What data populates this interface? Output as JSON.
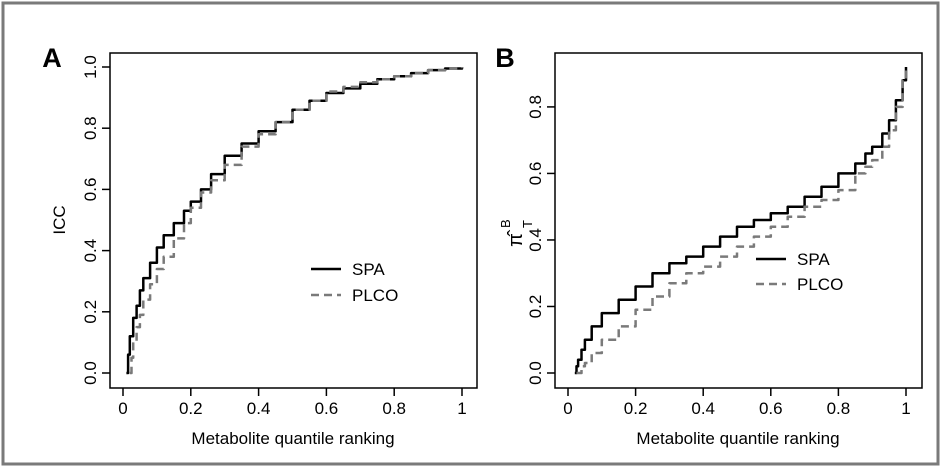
{
  "figure": {
    "frame_color": "#7a7a7a"
  },
  "chart_data": [
    {
      "type": "line",
      "panel_label": "A",
      "xlabel": "Metabolite quantile ranking",
      "ylabel": "ICC",
      "xlim": [
        0,
        1
      ],
      "ylim": [
        0,
        1
      ],
      "xticks": [
        0,
        0.2,
        0.4,
        0.6,
        0.8,
        1
      ],
      "xtick_labels": [
        "0",
        "0.2",
        "0.4",
        "0.6",
        "0.8",
        "1"
      ],
      "yticks": [
        0,
        0.2,
        0.4,
        0.6,
        0.8,
        1.0
      ],
      "ytick_labels": [
        "0.0",
        "0.2",
        "0.4",
        "0.6",
        "0.8",
        "1.0"
      ],
      "grid": false,
      "legend_position": "bottom-right",
      "series": [
        {
          "name": "SPA",
          "color": "#000000",
          "style": "solid",
          "x": [
            0.01,
            0.015,
            0.02,
            0.03,
            0.04,
            0.05,
            0.06,
            0.08,
            0.1,
            0.12,
            0.15,
            0.18,
            0.2,
            0.23,
            0.26,
            0.3,
            0.35,
            0.4,
            0.45,
            0.5,
            0.55,
            0.6,
            0.65,
            0.7,
            0.75,
            0.8,
            0.85,
            0.9,
            0.95,
            1.0
          ],
          "y": [
            0.0,
            0.06,
            0.12,
            0.18,
            0.22,
            0.27,
            0.31,
            0.36,
            0.41,
            0.45,
            0.49,
            0.53,
            0.56,
            0.6,
            0.65,
            0.71,
            0.75,
            0.79,
            0.82,
            0.86,
            0.89,
            0.915,
            0.93,
            0.945,
            0.96,
            0.97,
            0.98,
            0.99,
            0.995,
            1.0
          ]
        },
        {
          "name": "PLCO",
          "color": "#7a7a7a",
          "style": "dashed",
          "x": [
            0.02,
            0.025,
            0.03,
            0.04,
            0.05,
            0.06,
            0.08,
            0.1,
            0.12,
            0.15,
            0.18,
            0.2,
            0.23,
            0.26,
            0.3,
            0.35,
            0.4,
            0.45,
            0.5,
            0.55,
            0.6,
            0.65,
            0.7,
            0.75,
            0.8,
            0.85,
            0.9,
            0.95,
            1.0
          ],
          "y": [
            0.0,
            0.05,
            0.1,
            0.15,
            0.19,
            0.24,
            0.29,
            0.34,
            0.38,
            0.44,
            0.49,
            0.54,
            0.59,
            0.63,
            0.68,
            0.74,
            0.78,
            0.82,
            0.86,
            0.89,
            0.92,
            0.935,
            0.95,
            0.96,
            0.97,
            0.98,
            0.99,
            0.995,
            1.0
          ]
        }
      ]
    },
    {
      "type": "line",
      "panel_label": "B",
      "xlabel": "Metabolite quantile ranking",
      "ylabel": "π̂",
      "ylabel_superscript": "B",
      "ylabel_subscript": "T",
      "xlim": [
        0,
        1
      ],
      "ylim": [
        0,
        0.92
      ],
      "xticks": [
        0,
        0.2,
        0.4,
        0.6,
        0.8,
        1
      ],
      "xtick_labels": [
        "0",
        "0.2",
        "0.4",
        "0.6",
        "0.8",
        "1"
      ],
      "yticks": [
        0,
        0.2,
        0.4,
        0.6,
        0.8
      ],
      "ytick_labels": [
        "0.0",
        "0.2",
        "0.4",
        "0.6",
        "0.8"
      ],
      "grid": false,
      "legend_position": "center-right",
      "series": [
        {
          "name": "SPA",
          "color": "#000000",
          "style": "solid",
          "x": [
            0.02,
            0.025,
            0.03,
            0.04,
            0.05,
            0.07,
            0.1,
            0.15,
            0.2,
            0.25,
            0.3,
            0.35,
            0.4,
            0.45,
            0.5,
            0.55,
            0.6,
            0.65,
            0.7,
            0.75,
            0.8,
            0.85,
            0.88,
            0.9,
            0.93,
            0.95,
            0.97,
            0.99,
            1.0
          ],
          "y": [
            0.0,
            0.02,
            0.04,
            0.07,
            0.1,
            0.14,
            0.18,
            0.22,
            0.26,
            0.3,
            0.33,
            0.35,
            0.38,
            0.41,
            0.44,
            0.46,
            0.48,
            0.5,
            0.53,
            0.56,
            0.6,
            0.63,
            0.66,
            0.68,
            0.72,
            0.76,
            0.82,
            0.88,
            0.92
          ]
        },
        {
          "name": "PLCO",
          "color": "#7a7a7a",
          "style": "dashed",
          "x": [
            0.025,
            0.04,
            0.05,
            0.07,
            0.1,
            0.15,
            0.2,
            0.25,
            0.3,
            0.35,
            0.4,
            0.45,
            0.5,
            0.55,
            0.6,
            0.65,
            0.7,
            0.75,
            0.8,
            0.85,
            0.88,
            0.9,
            0.93,
            0.95,
            0.97,
            0.99,
            1.0
          ],
          "y": [
            0.0,
            0.02,
            0.03,
            0.06,
            0.1,
            0.14,
            0.19,
            0.23,
            0.27,
            0.3,
            0.32,
            0.35,
            0.38,
            0.41,
            0.44,
            0.47,
            0.5,
            0.52,
            0.55,
            0.6,
            0.62,
            0.64,
            0.68,
            0.73,
            0.8,
            0.88,
            0.92
          ]
        }
      ]
    }
  ]
}
